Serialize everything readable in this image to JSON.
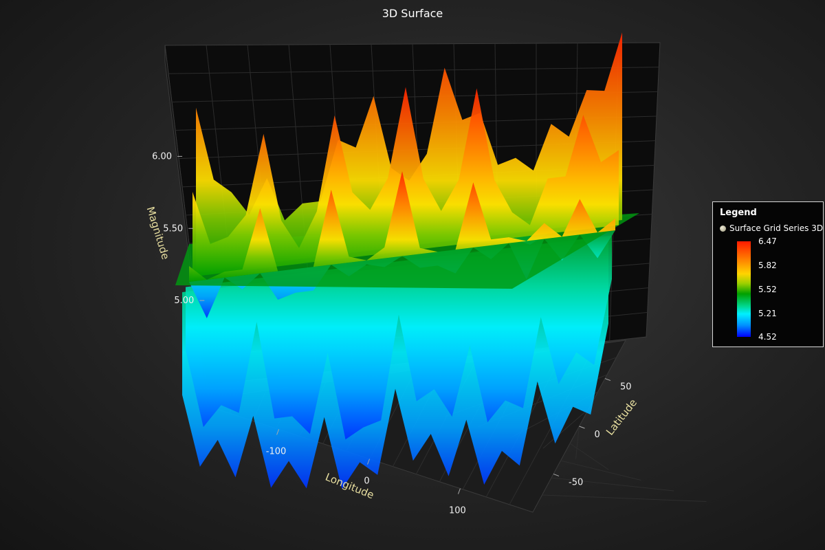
{
  "chart_data": {
    "type": "surface3d",
    "title": "3D Surface",
    "axes": {
      "x": {
        "label": "Longitude",
        "ticks": [
          -100,
          0,
          100
        ],
        "range": [
          -180,
          180
        ]
      },
      "y": {
        "label": "Magnitude",
        "ticks": [
          "5.00",
          "5.50",
          "6.00"
        ],
        "range": [
          4.52,
          6.47
        ]
      },
      "z": {
        "label": "Latitude",
        "ticks": [
          -50,
          0,
          50
        ],
        "range": [
          -90,
          90
        ]
      }
    },
    "series": [
      {
        "name": "Surface Grid Series 3D"
      }
    ],
    "longitude_samples": [
      -180,
      -150,
      -120,
      -90,
      -60,
      -30,
      0,
      30,
      60,
      90,
      120,
      150,
      180
    ],
    "latitude_samples": [
      -90,
      -45,
      0,
      45,
      90
    ],
    "magnitude_grid": [
      [
        6.35,
        5.9,
        5.95,
        5.8,
        6.1,
        6.3,
        5.85,
        6.4,
        6.15,
        5.9,
        6.05,
        6.2,
        6.47
      ],
      [
        5.95,
        5.7,
        6.2,
        5.6,
        6.25,
        5.75,
        6.35,
        5.7,
        6.3,
        5.65,
        5.8,
        6.1,
        5.9
      ],
      [
        5.6,
        5.55,
        5.85,
        5.4,
        5.9,
        5.5,
        5.95,
        5.45,
        5.85,
        5.55,
        5.6,
        5.7,
        5.58
      ],
      [
        5.2,
        4.9,
        5.3,
        4.8,
        5.1,
        4.7,
        5.25,
        4.85,
        5.05,
        4.75,
        5.15,
        4.95,
        5.3
      ],
      [
        5.0,
        4.75,
        4.85,
        4.6,
        4.8,
        4.55,
        4.9,
        4.65,
        4.7,
        4.52,
        4.85,
        4.7,
        5.1
      ]
    ],
    "plane_magnitude": 5.52,
    "color_scale": {
      "stops": [
        {
          "value": 6.47,
          "label": "6.47",
          "color": "#ff1a00"
        },
        {
          "value": 5.82,
          "label": "5.82",
          "color": "#ff9a00"
        },
        {
          "value": 5.52,
          "label": "5.52",
          "color": "#00a000"
        },
        {
          "value": 5.21,
          "label": "5.21",
          "color": "#00e8ff"
        },
        {
          "value": 4.52,
          "label": "4.52",
          "color": "#0000ff"
        }
      ]
    },
    "grid": true,
    "legend": {
      "title": "Legend",
      "position": "right"
    }
  }
}
